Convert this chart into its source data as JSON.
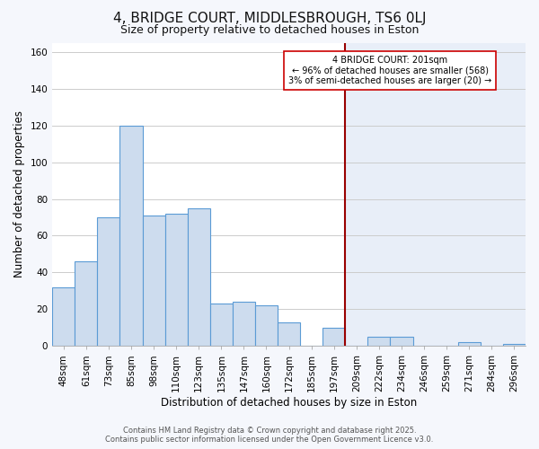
{
  "title": "4, BRIDGE COURT, MIDDLESBROUGH, TS6 0LJ",
  "subtitle": "Size of property relative to detached houses in Eston",
  "xlabel": "Distribution of detached houses by size in Eston",
  "ylabel": "Number of detached properties",
  "bar_labels": [
    "48sqm",
    "61sqm",
    "73sqm",
    "85sqm",
    "98sqm",
    "110sqm",
    "123sqm",
    "135sqm",
    "147sqm",
    "160sqm",
    "172sqm",
    "185sqm",
    "197sqm",
    "209sqm",
    "222sqm",
    "234sqm",
    "246sqm",
    "259sqm",
    "271sqm",
    "284sqm",
    "296sqm"
  ],
  "bar_values": [
    32,
    46,
    70,
    120,
    71,
    72,
    75,
    23,
    24,
    22,
    13,
    0,
    10,
    0,
    5,
    5,
    0,
    0,
    2,
    0,
    1
  ],
  "bar_color": "#cddcee",
  "bar_edge_color": "#5b9bd5",
  "vline_x_index": 12,
  "vline_color": "#990000",
  "annotation_title": "4 BRIDGE COURT: 201sqm",
  "annotation_line1": "← 96% of detached houses are smaller (568)",
  "annotation_line2": "3% of semi-detached houses are larger (20) →",
  "ylim": [
    0,
    165
  ],
  "yticks": [
    0,
    20,
    40,
    60,
    80,
    100,
    120,
    140,
    160
  ],
  "footnote1": "Contains HM Land Registry data © Crown copyright and database right 2025.",
  "footnote2": "Contains public sector information licensed under the Open Government Licence v3.0.",
  "bg_color_left": "#ffffff",
  "bg_color_right": "#e8eef8",
  "grid_color": "#cccccc",
  "title_fontsize": 11,
  "subtitle_fontsize": 9,
  "axis_label_fontsize": 8.5,
  "tick_fontsize": 7.5,
  "footnote_fontsize": 6.0
}
